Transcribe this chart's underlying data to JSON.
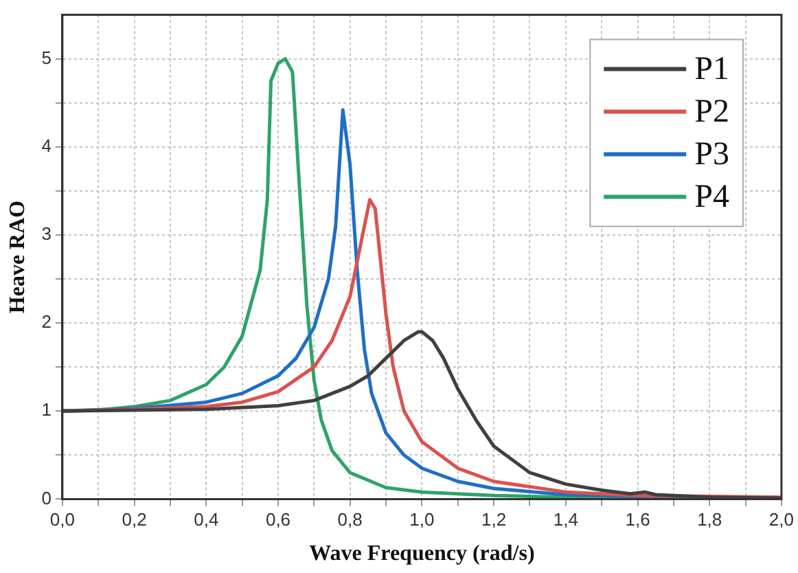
{
  "chart_data": {
    "type": "line",
    "xlabel": "Wave Frequency (rad/s)",
    "ylabel": "Heave RAO",
    "xlim": [
      0,
      2
    ],
    "ylim": [
      0,
      5.5
    ],
    "xticks": [
      {
        "value": 0,
        "label": "0,0"
      },
      {
        "value": 0.1,
        "label": null
      },
      {
        "value": 0.2,
        "label": "0,2"
      },
      {
        "value": 0.3,
        "label": null
      },
      {
        "value": 0.4,
        "label": "0,4"
      },
      {
        "value": 0.5,
        "label": null
      },
      {
        "value": 0.6,
        "label": "0,6"
      },
      {
        "value": 0.7,
        "label": null
      },
      {
        "value": 0.8,
        "label": "0,8"
      },
      {
        "value": 0.9,
        "label": null
      },
      {
        "value": 1,
        "label": "1,0"
      },
      {
        "value": 1.1,
        "label": null
      },
      {
        "value": 1.2,
        "label": "1,2"
      },
      {
        "value": 1.3,
        "label": null
      },
      {
        "value": 1.4,
        "label": "1,4"
      },
      {
        "value": 1.5,
        "label": null
      },
      {
        "value": 1.6,
        "label": "1,6"
      },
      {
        "value": 1.7,
        "label": null
      },
      {
        "value": 1.8,
        "label": "1,8"
      },
      {
        "value": 1.9,
        "label": null
      },
      {
        "value": 2,
        "label": "2,0"
      }
    ],
    "yticks": [
      0,
      {
        "value": 0.5,
        "label": null
      },
      1,
      {
        "value": 1.5,
        "label": null
      },
      2,
      {
        "value": 2.5,
        "label": null
      },
      3,
      {
        "value": 3.5,
        "label": null
      },
      4,
      {
        "value": 4.5,
        "label": null
      },
      5
    ],
    "grid": true,
    "legend": "top right",
    "marker": "none",
    "line_style": "solid",
    "series": [
      {
        "name": "P1",
        "color": "#404040",
        "x": [
          0,
          0.4,
          0.6,
          0.7,
          0.8,
          0.85,
          0.9,
          0.95,
          0.99,
          1.0,
          1.03,
          1.06,
          1.1,
          1.15,
          1.2,
          1.3,
          1.4,
          1.5,
          1.58,
          1.62,
          1.65,
          1.8,
          2.0
        ],
        "values": [
          1,
          1.02,
          1.06,
          1.12,
          1.28,
          1.4,
          1.6,
          1.8,
          1.9,
          1.9,
          1.8,
          1.6,
          1.25,
          0.9,
          0.6,
          0.3,
          0.17,
          0.1,
          0.06,
          0.08,
          0.05,
          0.02,
          0.01
        ]
      },
      {
        "name": "P2",
        "color": "#d9534f",
        "x": [
          0,
          0.2,
          0.4,
          0.5,
          0.6,
          0.7,
          0.75,
          0.8,
          0.83,
          0.855,
          0.87,
          0.88,
          0.9,
          0.92,
          0.95,
          1.0,
          1.1,
          1.2,
          1.4,
          1.6,
          2.0
        ],
        "values": [
          1,
          1.02,
          1.05,
          1.1,
          1.22,
          1.5,
          1.8,
          2.3,
          2.9,
          3.4,
          3.3,
          2.9,
          2.1,
          1.5,
          1.0,
          0.65,
          0.35,
          0.2,
          0.08,
          0.04,
          0.02
        ]
      },
      {
        "name": "P3",
        "color": "#1f6fc5",
        "x": [
          0,
          0.2,
          0.4,
          0.5,
          0.6,
          0.65,
          0.7,
          0.74,
          0.76,
          0.78,
          0.8,
          0.82,
          0.84,
          0.86,
          0.9,
          0.95,
          1.0,
          1.1,
          1.2,
          1.4,
          1.6,
          2.0
        ],
        "values": [
          1,
          1.03,
          1.1,
          1.2,
          1.4,
          1.6,
          1.95,
          2.5,
          3.1,
          4.42,
          3.8,
          2.6,
          1.7,
          1.2,
          0.75,
          0.5,
          0.35,
          0.2,
          0.12,
          0.05,
          0.03,
          0.01
        ]
      },
      {
        "name": "P4",
        "color": "#2ea36a",
        "x": [
          0,
          0.1,
          0.2,
          0.3,
          0.4,
          0.45,
          0.5,
          0.55,
          0.57,
          0.58,
          0.6,
          0.62,
          0.64,
          0.66,
          0.68,
          0.7,
          0.72,
          0.75,
          0.8,
          0.9,
          1.0,
          1.2,
          1.4,
          1.6,
          2.0
        ],
        "values": [
          1,
          1.01,
          1.05,
          1.12,
          1.3,
          1.5,
          1.85,
          2.6,
          3.4,
          4.75,
          4.95,
          5.0,
          4.85,
          3.5,
          2.2,
          1.35,
          0.9,
          0.55,
          0.3,
          0.13,
          0.08,
          0.04,
          0.02,
          0.01,
          0.01
        ]
      }
    ]
  }
}
